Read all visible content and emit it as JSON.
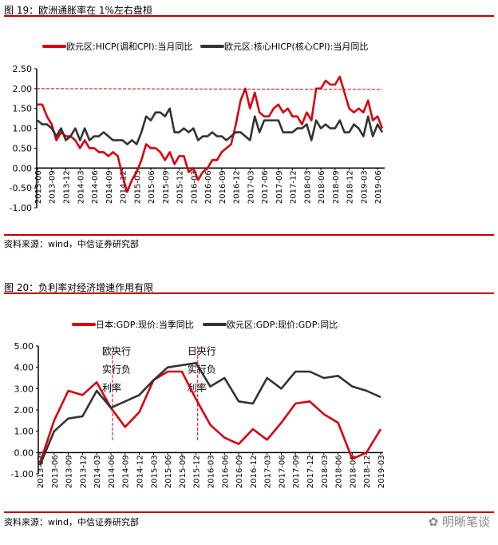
{
  "figure1": {
    "title": "图 19：欧洲通胀率在 1%左右盘桓",
    "source": "资料来源：wind，中信证券研究部"
  },
  "figure2": {
    "title": "图 20：负利率对经济增速作用有限",
    "source": "资料来源：wind，中信证券研究部"
  },
  "watermark": "明晰笔谈",
  "colors": {
    "red": "#d9000f",
    "dark": "#333333",
    "rule": "#c00000"
  },
  "chart_data": [
    {
      "type": "line",
      "ylim": [
        -1,
        2.5
      ],
      "yticks": [
        "2.50",
        "2.00",
        "1.50",
        "1.00",
        "0.50",
        "0.00",
        "-0.50",
        "-1.00"
      ],
      "xticks": [
        "2013-06",
        "2013-09",
        "2013-12",
        "2014-03",
        "2014-06",
        "2014-09",
        "2014-12",
        "2015-03",
        "2015-06",
        "2015-09",
        "2015-12",
        "2016-03",
        "2016-06",
        "2016-09",
        "2016-12",
        "2017-03",
        "2017-06",
        "2017-09",
        "2017-12",
        "2018-03",
        "2018-06",
        "2018-09",
        "2018-12",
        "2019-03",
        "2019-06"
      ],
      "x_start": "2013-06",
      "x_end": "2019-07",
      "frequency": "monthly",
      "reference_line": {
        "y": 2.0,
        "style": "dashed",
        "color": "#c00000"
      },
      "series": [
        {
          "name": "欧元区:HICP(调和CPI):当月同比",
          "color": "#d9000f",
          "values": [
            1.6,
            1.6,
            1.3,
            1.1,
            0.7,
            0.9,
            0.8,
            0.8,
            0.7,
            0.5,
            0.7,
            0.5,
            0.5,
            0.4,
            0.4,
            0.3,
            0.4,
            0.3,
            -0.2,
            -0.6,
            -0.3,
            -0.1,
            0.2,
            0.6,
            0.5,
            0.5,
            0.4,
            0.2,
            0.4,
            0.1,
            0.3,
            0.3,
            -0.1,
            0.0,
            -0.3,
            -0.1,
            0.0,
            0.2,
            0.2,
            0.4,
            0.5,
            0.6,
            1.1,
            1.7,
            2.0,
            1.5,
            1.9,
            1.4,
            1.3,
            1.3,
            1.5,
            1.6,
            1.4,
            1.5,
            1.3,
            1.3,
            1.1,
            1.4,
            1.2,
            2.0,
            2.0,
            2.2,
            2.1,
            2.1,
            2.3,
            1.9,
            1.5,
            1.4,
            1.5,
            1.4,
            1.7,
            1.2,
            1.3,
            1.0
          ]
        },
        {
          "name": "欧元区:核心HICP(核心CPI):当月同比",
          "color": "#333333",
          "values": [
            1.2,
            1.1,
            1.1,
            1.0,
            0.8,
            1.0,
            0.7,
            0.8,
            1.0,
            0.7,
            1.0,
            0.7,
            0.8,
            0.8,
            0.9,
            0.8,
            0.7,
            0.7,
            0.7,
            0.6,
            0.7,
            0.6,
            0.9,
            1.3,
            1.2,
            1.4,
            1.4,
            1.3,
            1.5,
            0.9,
            0.9,
            1.0,
            0.9,
            1.0,
            0.7,
            0.8,
            0.8,
            0.9,
            0.8,
            0.8,
            0.7,
            0.8,
            0.9,
            0.9,
            0.8,
            0.7,
            1.3,
            0.9,
            1.2,
            1.2,
            1.2,
            1.2,
            0.9,
            0.9,
            0.9,
            1.0,
            1.0,
            1.1,
            0.7,
            1.2,
            1.0,
            1.1,
            1.0,
            1.0,
            1.2,
            0.9,
            0.9,
            1.1,
            1.0,
            0.8,
            1.3,
            0.8,
            1.1,
            0.9
          ]
        }
      ]
    },
    {
      "type": "line",
      "ylim": [
        -1,
        5
      ],
      "yticks": [
        "5.00",
        "4.00",
        "3.00",
        "2.00",
        "1.00",
        "0.00",
        "-1.00"
      ],
      "xticks": [
        "2013-03",
        "2013-06",
        "2013-09",
        "2013-12",
        "2014-03",
        "2014-06",
        "2014-09",
        "2014-12",
        "2015-03",
        "2015-06",
        "2015-09",
        "2015-12",
        "2016-03",
        "2016-06",
        "2016-09",
        "2016-12",
        "2017-03",
        "2017-06",
        "2017-09",
        "2017-12",
        "2018-03",
        "2018-06",
        "2018-09",
        "2018-12",
        "2019-03"
      ],
      "frequency": "quarterly",
      "annotations": [
        {
          "x": "2014-06",
          "text": [
            "欧央行",
            "实行负",
            "利率"
          ]
        },
        {
          "x": "2015-12",
          "text": [
            "日央行",
            "实行负",
            "利率"
          ]
        }
      ],
      "series": [
        {
          "name": "日本:GDP:现价:当季同比",
          "color": "#d9000f",
          "values": [
            -0.5,
            1.5,
            2.9,
            2.7,
            3.3,
            2.1,
            1.2,
            1.9,
            3.4,
            3.8,
            3.8,
            2.5,
            1.3,
            0.7,
            0.4,
            1.1,
            0.6,
            1.4,
            2.3,
            2.4,
            1.8,
            1.4,
            -0.3,
            0.0,
            1.1
          ]
        },
        {
          "name": "欧元区:GDP:现价:GDP:同比",
          "color": "#333333",
          "values": [
            -0.6,
            1.0,
            1.6,
            1.7,
            2.9,
            2.1,
            2.4,
            2.7,
            3.4,
            4.0,
            4.1,
            4.2,
            3.1,
            3.5,
            2.4,
            2.3,
            3.5,
            3.0,
            3.8,
            3.8,
            3.5,
            3.6,
            3.1,
            2.9,
            2.6
          ]
        }
      ]
    }
  ]
}
